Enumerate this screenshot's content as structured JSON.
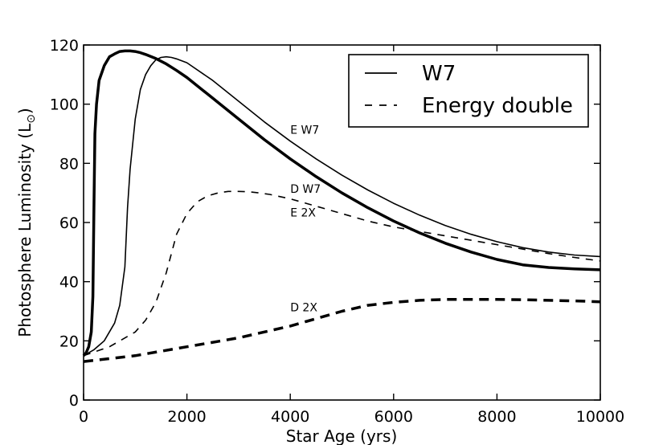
{
  "chart_data": {
    "type": "line",
    "title": "",
    "xlabel": "Star Age (yrs)",
    "ylabel": "Photosphere Luminosity (L",
    "ylabel_symbol": "⊙",
    "ylabel_close": ")",
    "xlim": [
      0,
      10000
    ],
    "ylim": [
      0,
      120
    ],
    "xticks": [
      0,
      2000,
      4000,
      6000,
      8000,
      10000
    ],
    "yticks": [
      0,
      20,
      40,
      60,
      80,
      100,
      120
    ],
    "xtick_labels": [
      "0",
      "2000",
      "4000",
      "6000",
      "8000",
      "10000"
    ],
    "ytick_labels": [
      "0",
      "20",
      "40",
      "60",
      "80",
      "100",
      "120"
    ],
    "grid": false,
    "legend_position": "top-right",
    "legend": [
      {
        "label": "W7",
        "style": "solid"
      },
      {
        "label": "Energy double",
        "style": "dashed"
      }
    ],
    "annotations": [
      {
        "text": "E W7",
        "x": 4000,
        "y": 90
      },
      {
        "text": "D W7",
        "x": 4000,
        "y": 70
      },
      {
        "text": "E 2X",
        "x": 4000,
        "y": 62
      },
      {
        "text": "D 2X",
        "x": 4000,
        "y": 30
      }
    ],
    "series": [
      {
        "name": "D W7",
        "style": "solid",
        "weight": "thick",
        "x": [
          0,
          50,
          100,
          150,
          180,
          200,
          220,
          250,
          300,
          400,
          500,
          600,
          700,
          800,
          900,
          1000,
          1100,
          1200,
          1400,
          1600,
          1800,
          2000,
          2500,
          3000,
          3500,
          4000,
          4500,
          5000,
          5500,
          6000,
          6500,
          7000,
          7500,
          8000,
          8500,
          9000,
          9500,
          10000
        ],
        "y": [
          15,
          16,
          18,
          23,
          35,
          65,
          90,
          100,
          108,
          113,
          116,
          117,
          117.8,
          118,
          118,
          117.8,
          117.4,
          116.8,
          115.4,
          113.6,
          111.4,
          109,
          102,
          95,
          88,
          81.5,
          75.5,
          70,
          65,
          60.5,
          56.5,
          53,
          50,
          47.5,
          45.7,
          44.8,
          44.3,
          44
        ]
      },
      {
        "name": "E W7",
        "style": "solid",
        "weight": "thin",
        "x": [
          0,
          200,
          400,
          600,
          700,
          800,
          850,
          900,
          1000,
          1100,
          1200,
          1300,
          1400,
          1500,
          1600,
          1700,
          1800,
          2000,
          2500,
          3000,
          3500,
          4000,
          4500,
          5000,
          5500,
          6000,
          6500,
          7000,
          7500,
          8000,
          8500,
          9000,
          9500,
          10000
        ],
        "y": [
          15,
          17,
          20,
          26,
          32,
          45,
          65,
          78,
          95,
          105,
          110,
          113,
          115,
          115.8,
          116,
          115.8,
          115.3,
          114,
          108,
          101,
          94,
          87.5,
          81.5,
          76,
          71,
          66.5,
          62.5,
          59,
          56,
          53.5,
          51.5,
          50,
          49,
          48.5
        ]
      },
      {
        "name": "E 2X",
        "style": "dashed",
        "weight": "thin",
        "x": [
          0,
          500,
          1000,
          1200,
          1400,
          1600,
          1800,
          2000,
          2200,
          2400,
          2600,
          2800,
          3000,
          3200,
          3400,
          3600,
          4000,
          4500,
          5000,
          5500,
          6000,
          6500,
          7000,
          7500,
          8000,
          8500,
          9000,
          9500,
          10000
        ],
        "y": [
          15,
          18,
          23,
          27,
          33,
          43,
          56,
          63,
          67,
          69,
          70,
          70.5,
          70.5,
          70.4,
          70,
          69.5,
          68,
          65.5,
          63,
          60.5,
          58.5,
          57,
          55.5,
          54,
          52.5,
          51,
          49.5,
          48.2,
          47
        ]
      },
      {
        "name": "D 2X",
        "style": "dashed",
        "weight": "thick",
        "x": [
          0,
          1000,
          2000,
          3000,
          4000,
          4500,
          5000,
          5500,
          6000,
          6500,
          7000,
          7500,
          8000,
          8500,
          9000,
          9500,
          10000
        ],
        "y": [
          13,
          15,
          18,
          21,
          25,
          27.5,
          30,
          32,
          33,
          33.7,
          34,
          34,
          34,
          33.9,
          33.7,
          33.5,
          33.2
        ]
      }
    ]
  }
}
